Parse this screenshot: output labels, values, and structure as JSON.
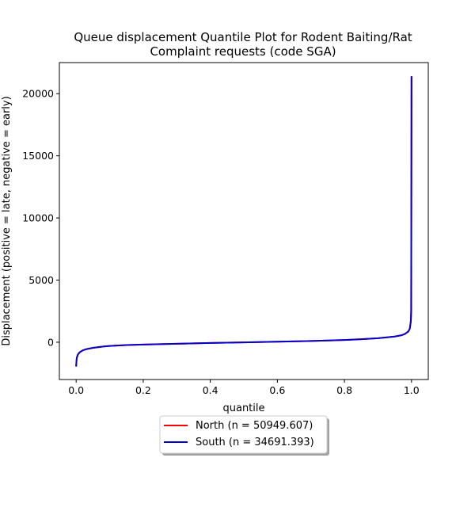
{
  "chart_data": {
    "type": "line",
    "title_line1": "Queue displacement Quantile Plot for Rodent Baiting/Rat",
    "title_line2": "Complaint  requests (code SGA)",
    "xlabel": "quantile",
    "ylabel": "Displacement (positive = late, negative = early)",
    "xlim": [
      -0.05,
      1.05
    ],
    "ylim": [
      -3000,
      22500
    ],
    "xticks": [
      0.0,
      0.2,
      0.4,
      0.6,
      0.8,
      1.0
    ],
    "xtick_labels": [
      "0.0",
      "0.2",
      "0.4",
      "0.6",
      "0.8",
      "1.0"
    ],
    "yticks": [
      0,
      5000,
      10000,
      15000,
      20000
    ],
    "ytick_labels": [
      "0",
      "5000",
      "10000",
      "15000",
      "20000"
    ],
    "legend_placement": "below plot, centered",
    "grid": false,
    "series": [
      {
        "name": "North (n = 50949.607)",
        "color": "#ff0000",
        "x": [
          0.0,
          0.001,
          0.002,
          0.005,
          0.01,
          0.02,
          0.03,
          0.05,
          0.08,
          0.1,
          0.15,
          0.2,
          0.3,
          0.4,
          0.5,
          0.6,
          0.7,
          0.8,
          0.85,
          0.9,
          0.93,
          0.95,
          0.97,
          0.98,
          0.99,
          0.995,
          0.998,
          0.999,
          1.0
        ],
        "y": [
          -1950,
          -1500,
          -1250,
          -1000,
          -820,
          -650,
          -560,
          -450,
          -350,
          -300,
          -230,
          -190,
          -120,
          -60,
          -10,
          40,
          100,
          180,
          240,
          320,
          400,
          460,
          560,
          660,
          850,
          1100,
          1700,
          2500,
          21400
        ]
      },
      {
        "name": "South (n = 34691.393)",
        "color": "#0000cc",
        "x": [
          0.0,
          0.001,
          0.002,
          0.005,
          0.01,
          0.02,
          0.03,
          0.05,
          0.08,
          0.1,
          0.15,
          0.2,
          0.3,
          0.4,
          0.5,
          0.6,
          0.7,
          0.8,
          0.85,
          0.9,
          0.93,
          0.95,
          0.97,
          0.98,
          0.99,
          0.995,
          0.998,
          0.999,
          1.0
        ],
        "y": [
          -1950,
          -1500,
          -1250,
          -1000,
          -820,
          -650,
          -560,
          -450,
          -350,
          -300,
          -230,
          -190,
          -120,
          -60,
          -10,
          40,
          100,
          180,
          240,
          320,
          400,
          460,
          560,
          660,
          850,
          1100,
          1700,
          2500,
          21400
        ]
      }
    ]
  }
}
